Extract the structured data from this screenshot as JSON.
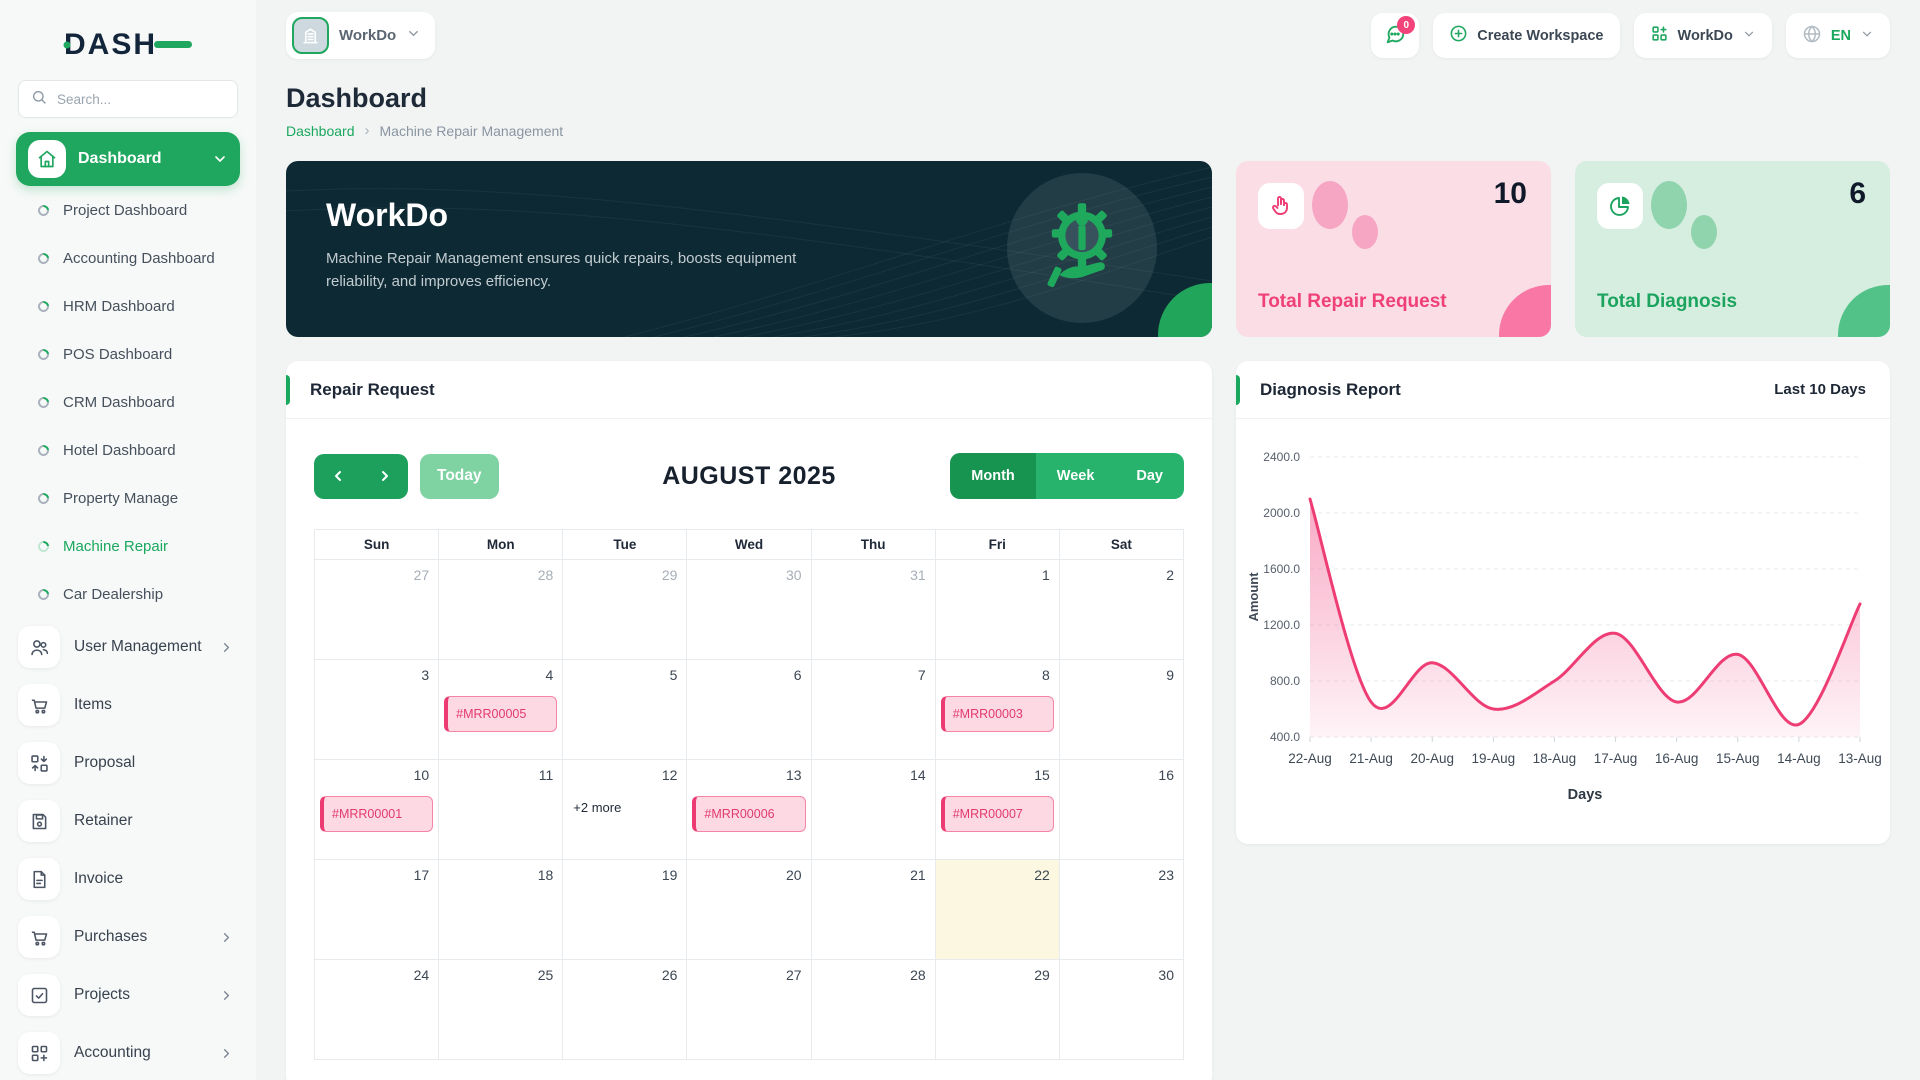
{
  "brand": {
    "logo": "DASH"
  },
  "sidebar": {
    "search_placeholder": "Search...",
    "dashboard": {
      "label": "Dashboard",
      "items": [
        {
          "label": "Project Dashboard",
          "active": false
        },
        {
          "label": "Accounting Dashboard",
          "active": false
        },
        {
          "label": "HRM Dashboard",
          "active": false
        },
        {
          "label": "POS Dashboard",
          "active": false
        },
        {
          "label": "CRM Dashboard",
          "active": false
        },
        {
          "label": "Hotel Dashboard",
          "active": false
        },
        {
          "label": "Property Manage",
          "active": false
        },
        {
          "label": "Machine Repair",
          "active": true
        },
        {
          "label": "Car Dealership",
          "active": false
        }
      ]
    },
    "menu": [
      {
        "icon": "users-icon",
        "label": "User Management",
        "chevron": true
      },
      {
        "icon": "cart-icon",
        "label": "Items",
        "chevron": false
      },
      {
        "icon": "swap-icon",
        "label": "Proposal",
        "chevron": false
      },
      {
        "icon": "save-icon",
        "label": "Retainer",
        "chevron": false
      },
      {
        "icon": "file-icon",
        "label": "Invoice",
        "chevron": false
      },
      {
        "icon": "cart-icon",
        "label": "Purchases",
        "chevron": true
      },
      {
        "icon": "check-square-icon",
        "label": "Projects",
        "chevron": true
      },
      {
        "icon": "grid-plus-icon",
        "label": "Accounting",
        "chevron": true
      }
    ]
  },
  "header": {
    "workspace": "WorkDo",
    "notification_badge": "0",
    "create_workspace": "Create Workspace",
    "workspace_menu": "WorkDo",
    "language": "EN"
  },
  "page": {
    "title": "Dashboard",
    "breadcrumb_root": "Dashboard",
    "breadcrumb_separator": "›",
    "breadcrumb_current": "Machine Repair Management"
  },
  "hero": {
    "title": "WorkDo",
    "description": "Machine Repair Management ensures quick repairs, boosts equipment reliability, and improves efficiency."
  },
  "stats": [
    {
      "label": "Total Repair Request",
      "value": "10",
      "theme": "pink",
      "icon": "pointer-icon"
    },
    {
      "label": "Total Diagnosis",
      "value": "6",
      "theme": "green",
      "icon": "pie-icon"
    }
  ],
  "calendar": {
    "card_title": "Repair Request",
    "today_button": "Today",
    "title": "AUGUST 2025",
    "views": [
      "Month",
      "Week",
      "Day"
    ],
    "active_view": "Month",
    "day_headers": [
      "Sun",
      "Mon",
      "Tue",
      "Wed",
      "Thu",
      "Fri",
      "Sat"
    ],
    "weeks": [
      [
        {
          "d": "27",
          "muted": true
        },
        {
          "d": "28",
          "muted": true
        },
        {
          "d": "29",
          "muted": true
        },
        {
          "d": "30",
          "muted": true
        },
        {
          "d": "31",
          "muted": true
        },
        {
          "d": "1"
        },
        {
          "d": "2"
        }
      ],
      [
        {
          "d": "3"
        },
        {
          "d": "4",
          "event": "#MRR00005"
        },
        {
          "d": "5"
        },
        {
          "d": "6"
        },
        {
          "d": "7"
        },
        {
          "d": "8",
          "event": "#MRR00003"
        },
        {
          "d": "9"
        }
      ],
      [
        {
          "d": "10",
          "event": "#MRR00001"
        },
        {
          "d": "11"
        },
        {
          "d": "12",
          "more": "+2 more"
        },
        {
          "d": "13",
          "event": "#MRR00006"
        },
        {
          "d": "14"
        },
        {
          "d": "15",
          "event": "#MRR00007"
        },
        {
          "d": "16"
        }
      ],
      [
        {
          "d": "17"
        },
        {
          "d": "18"
        },
        {
          "d": "19"
        },
        {
          "d": "20"
        },
        {
          "d": "21"
        },
        {
          "d": "22",
          "today": true
        },
        {
          "d": "23"
        }
      ],
      [
        {
          "d": "24"
        },
        {
          "d": "25"
        },
        {
          "d": "26"
        },
        {
          "d": "27"
        },
        {
          "d": "28"
        },
        {
          "d": "29"
        },
        {
          "d": "30"
        }
      ]
    ]
  },
  "diagnosis": {
    "card_title": "Diagnosis Report",
    "range_label": "Last 10 Days"
  },
  "chart_data": {
    "type": "area",
    "title": "Diagnosis Report",
    "x": [
      "22-Aug",
      "21-Aug",
      "20-Aug",
      "19-Aug",
      "18-Aug",
      "17-Aug",
      "16-Aug",
      "15-Aug",
      "14-Aug",
      "13-Aug"
    ],
    "values": [
      2100,
      650,
      930,
      600,
      800,
      1140,
      650,
      990,
      490,
      1350
    ],
    "xlabel": "Days",
    "ylabel": "Amount",
    "ylim": [
      400,
      2400
    ],
    "yticks": [
      400,
      800,
      1200,
      1600,
      2000,
      2400
    ],
    "grid": "dashed-horizontal",
    "legend": "none",
    "line_color": "#ee3d74",
    "fill_color": "#f4719f"
  },
  "colors": {
    "primary_green": "#1fa75f",
    "active_view_green": "#17944f",
    "hero_background": "#0d2a34",
    "event_pink": "#ec3b72",
    "today_yellow": "#fcf7e1"
  }
}
